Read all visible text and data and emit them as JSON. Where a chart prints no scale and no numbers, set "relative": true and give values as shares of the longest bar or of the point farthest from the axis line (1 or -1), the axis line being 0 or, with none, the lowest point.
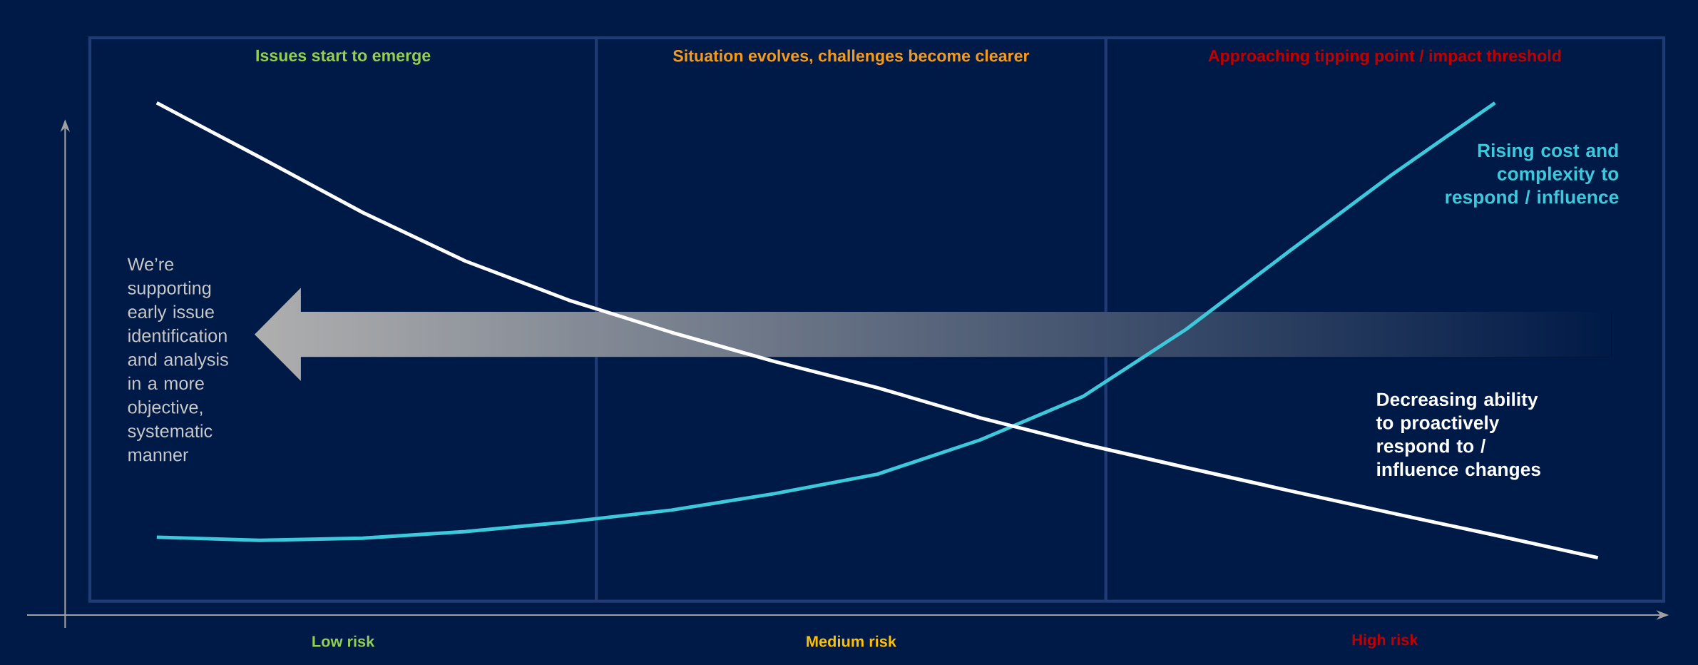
{
  "chart_data": {
    "type": "line",
    "relative": true,
    "categories": [
      null,
      null,
      null,
      null,
      null,
      null,
      null,
      null,
      null,
      null,
      null,
      null,
      null,
      null,
      null
    ],
    "series": [
      {
        "name": "Rising cost and complexity to respond  / influence",
        "color": "#3ec8dc",
        "values": [
          0.152,
          0.146,
          0.15,
          0.163,
          0.182,
          0.205,
          0.237,
          0.275,
          0.342,
          0.427,
          0.558,
          0.71,
          0.86,
          1.0,
          null
        ]
      },
      {
        "name": "Decreasing ability to proactively respond to / influence changes",
        "color": "#ffffff",
        "values": [
          1.0,
          0.894,
          0.786,
          0.691,
          0.615,
          0.552,
          0.495,
          0.444,
          0.385,
          0.334,
          0.288,
          0.243,
          0.199,
          0.156,
          0.112
        ]
      }
    ],
    "annotations": [
      "Issues start to emerge",
      "Situation evolves, challenges become clearer",
      "Approaching tipping point / impact threshold",
      "Low risk",
      "Medium risk",
      "High risk",
      "We’re supporting early issue identification and analysis in a more objective, systematic manner"
    ]
  }
}
